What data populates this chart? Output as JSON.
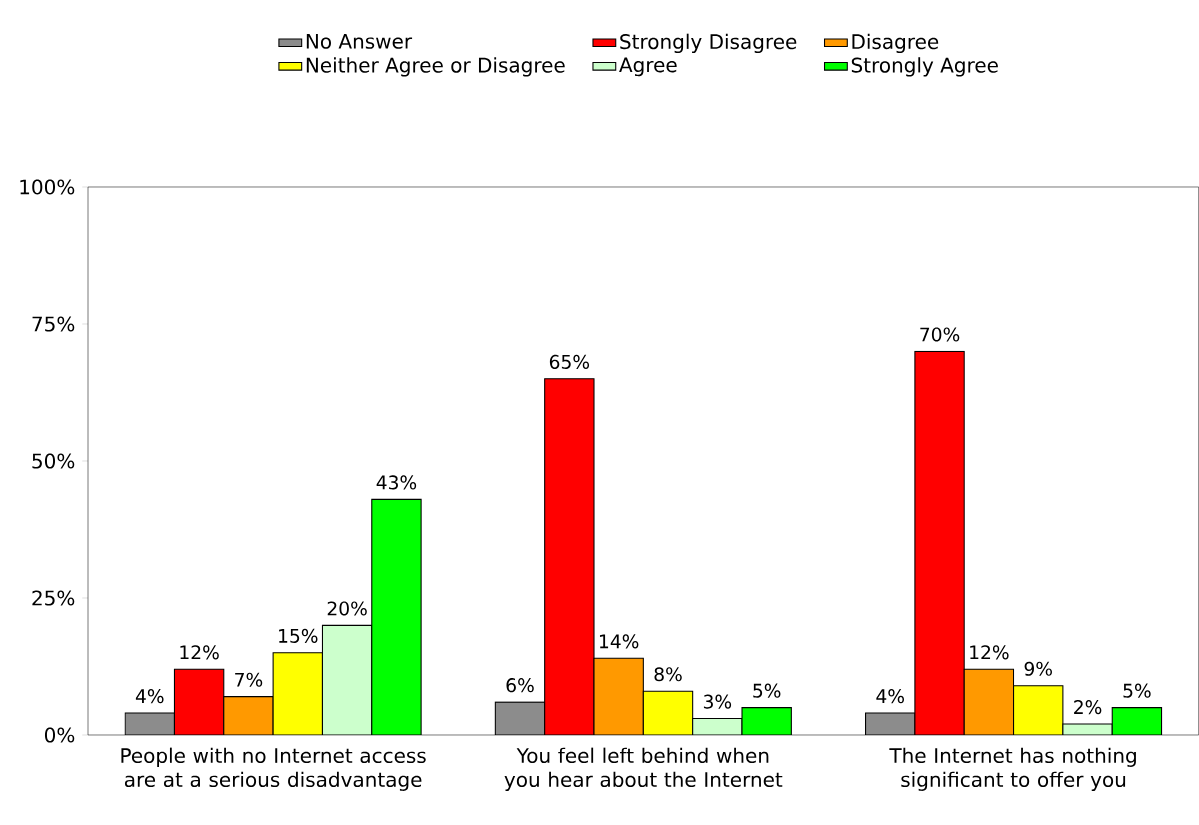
{
  "chart_data": {
    "type": "bar",
    "categories": [
      "People with no Internet access are at a serious disadvantage",
      "You feel left behind when you hear about the Internet",
      "The Internet has nothing significant to offer you"
    ],
    "series": [
      {
        "name": "No Answer",
        "color": "#8c8c8c",
        "values": [
          4,
          6,
          4
        ],
        "value_labels": [
          "4%",
          "6%",
          "4%"
        ]
      },
      {
        "name": "Strongly Disagree",
        "color": "#ff0000",
        "values": [
          12,
          65,
          70
        ],
        "value_labels": [
          "12%",
          "65%",
          "70%"
        ]
      },
      {
        "name": "Disagree",
        "color": "#ff9900",
        "values": [
          7,
          14,
          12
        ],
        "value_labels": [
          "7%",
          "14%",
          "12%"
        ]
      },
      {
        "name": "Neither Agree or Disagree",
        "color": "#ffff00",
        "values": [
          15,
          8,
          9
        ],
        "value_labels": [
          "15%",
          "8%",
          "9%"
        ]
      },
      {
        "name": "Agree",
        "color": "#ccffcc",
        "values": [
          20,
          3,
          2
        ],
        "value_labels": [
          "20%",
          "3%",
          "2%"
        ]
      },
      {
        "name": "Strongly Agree",
        "color": "#00ff00",
        "values": [
          43,
          5,
          5
        ],
        "value_labels": [
          "43%",
          "5%",
          "5%"
        ]
      }
    ],
    "ylim": [
      0,
      100
    ],
    "yticks": [
      {
        "value": 0,
        "label": "0%"
      },
      {
        "value": 25,
        "label": "25%"
      },
      {
        "value": 50,
        "label": "50%"
      },
      {
        "value": 75,
        "label": "75%"
      },
      {
        "value": 100,
        "label": "100%"
      }
    ],
    "grid": false,
    "legend": "top"
  }
}
